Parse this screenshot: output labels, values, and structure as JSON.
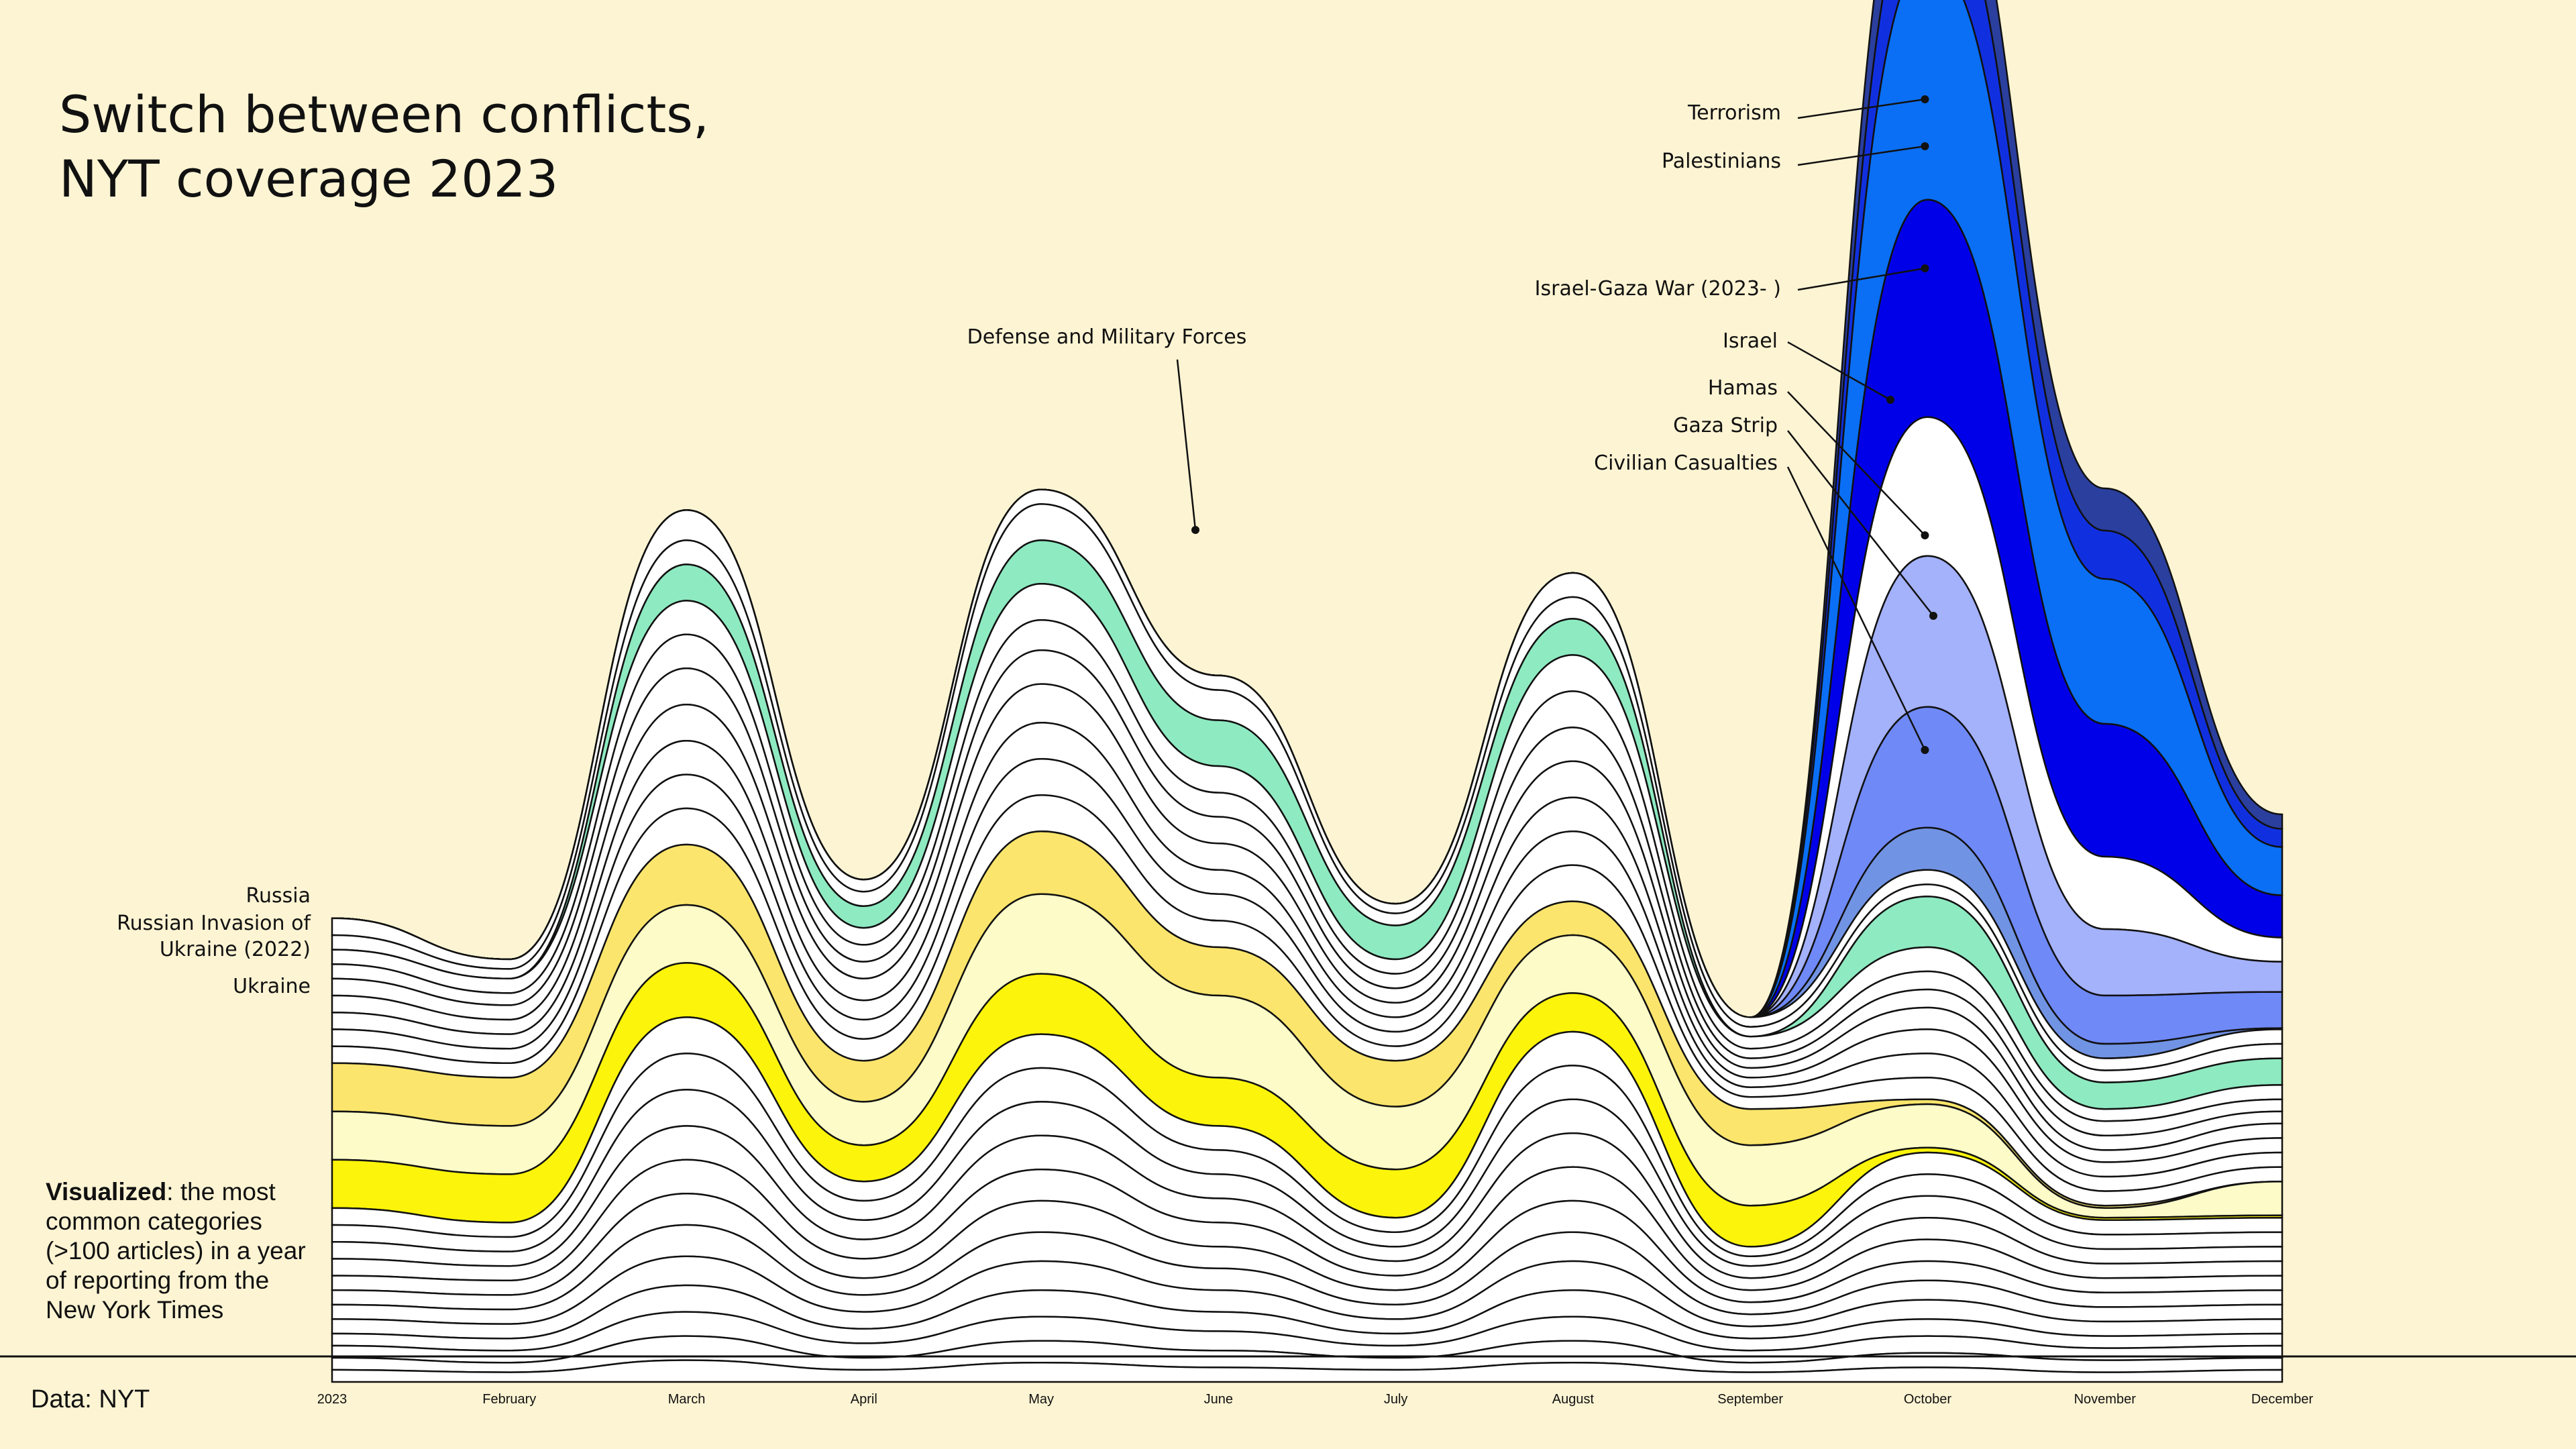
{
  "header": {
    "title_line1": "Switch between conflicts,",
    "title_line2": "NYT coverage 2023"
  },
  "note": {
    "bold": "Visualized",
    "text": ": the most common categories (>100 articles) in a year of reporting from the New York Times"
  },
  "source": "Data: NYT",
  "colors": {
    "background": "#fdf4d3",
    "stream_default": "#ffffff",
    "terrorism": "#2b3f9e",
    "palestinians": "#1030e0",
    "israel_gaza_war": "#0a6ff5",
    "israel": "#0000e8",
    "hamas": "#a4b1fb",
    "gaza_strip": "#6f89f7",
    "civilian_casualties": "#7193e4",
    "defense": "#8eeac1",
    "russia": "#fbe56c",
    "russian_invasion": "#fdfbc8",
    "ukraine": "#fcf40a"
  },
  "chart_data": {
    "type": "area",
    "subtype": "streamgraph",
    "x": [
      "2023",
      "February",
      "March",
      "April",
      "May",
      "June",
      "July",
      "August",
      "September",
      "October",
      "November",
      "December"
    ],
    "x_tick_labels": [
      "2023",
      "February",
      "March",
      "April",
      "May",
      "June",
      "July",
      "August",
      "September",
      "October",
      "November",
      "December"
    ],
    "highlight_labels": {
      "terrorism": "Terrorism",
      "palestinians": "Palestinians",
      "israel_gaza_war": "Israel-Gaza War (2023- )",
      "israel": "Israel",
      "hamas": "Hamas",
      "gaza_strip": "Gaza Strip",
      "civilian_casualties": "Civilian Casualties",
      "defense": "Defense and Military Forces",
      "russia": "Russia",
      "russian_invasion": "Russian Invasion of Ukraine (2022)",
      "ukraine": "Ukraine"
    },
    "series": [
      {
        "key": "terrorism",
        "values": [
          0,
          0,
          0,
          0,
          0,
          0,
          0,
          0,
          0,
          60,
          35,
          12
        ],
        "color_key": "terrorism"
      },
      {
        "key": "palestinians",
        "values": [
          0,
          0,
          0,
          0,
          0,
          0,
          0,
          0,
          0,
          70,
          40,
          15
        ],
        "color_key": "palestinians"
      },
      {
        "key": "israel_gaza_war",
        "values": [
          0,
          0,
          0,
          0,
          0,
          0,
          0,
          0,
          0,
          200,
          120,
          40
        ],
        "color_key": "israel_gaza_war"
      },
      {
        "key": "israel",
        "values": [
          0,
          0,
          0,
          0,
          0,
          0,
          0,
          0,
          0,
          180,
          110,
          35
        ],
        "color_key": "israel"
      },
      {
        "key": "",
        "values": [
          0,
          0,
          0,
          0,
          0,
          0,
          0,
          0,
          0,
          115,
          60,
          20
        ],
        "color_key": "stream_default"
      },
      {
        "key": "hamas",
        "values": [
          0,
          0,
          0,
          0,
          0,
          0,
          0,
          0,
          0,
          125,
          55,
          25
        ],
        "color_key": "hamas"
      },
      {
        "key": "gaza_strip",
        "values": [
          0,
          0,
          0,
          0,
          0,
          0,
          0,
          0,
          0,
          100,
          40,
          30
        ],
        "color_key": "gaza_strip"
      },
      {
        "key": "civilian_casualties",
        "values": [
          0,
          0,
          0,
          0,
          0,
          0,
          0,
          0,
          0,
          35,
          12,
          1
        ],
        "color_key": "civilian_casualties"
      },
      {
        "key": "",
        "values": [
          14,
          8,
          25,
          10,
          12,
          12,
          8,
          20,
          8,
          12,
          10,
          12
        ],
        "color_key": "stream_default"
      },
      {
        "key": "",
        "values": [
          12,
          8,
          20,
          12,
          30,
          25,
          10,
          18,
          8,
          10,
          10,
          12
        ],
        "color_key": "stream_default"
      },
      {
        "key": "defense",
        "values": [
          0,
          0,
          30,
          18,
          36,
          38,
          28,
          30,
          0,
          42,
          22,
          22
        ],
        "color_key": "defense"
      },
      {
        "key": "",
        "values": [
          12,
          12,
          28,
          14,
          30,
          22,
          12,
          30,
          10,
          20,
          10,
          12
        ],
        "color_key": "stream_default"
      },
      {
        "key": "",
        "values": [
          12,
          10,
          28,
          14,
          25,
          20,
          12,
          30,
          8,
          15,
          12,
          10
        ],
        "color_key": "stream_default"
      },
      {
        "key": "",
        "values": [
          14,
          12,
          30,
          14,
          28,
          22,
          12,
          28,
          8,
          15,
          12,
          10
        ],
        "color_key": "stream_default"
      },
      {
        "key": "",
        "values": [
          14,
          12,
          30,
          18,
          32,
          22,
          12,
          30,
          8,
          18,
          10,
          12
        ],
        "color_key": "stream_default"
      },
      {
        "key": "",
        "values": [
          14,
          12,
          28,
          16,
          30,
          20,
          12,
          28,
          8,
          20,
          12,
          12
        ],
        "color_key": "stream_default"
      },
      {
        "key": "",
        "values": [
          14,
          12,
          28,
          16,
          30,
          22,
          12,
          28,
          8,
          20,
          12,
          12
        ],
        "color_key": "stream_default"
      },
      {
        "key": "",
        "values": [
          14,
          12,
          30,
          18,
          30,
          22,
          12,
          30,
          10,
          18,
          12,
          12
        ],
        "color_key": "stream_default"
      },
      {
        "key": "russia",
        "values": [
          40,
          40,
          50,
          34,
          52,
          40,
          38,
          28,
          30,
          4,
          2,
          0
        ],
        "color_key": "russia"
      },
      {
        "key": "russian_invasion",
        "values": [
          40,
          40,
          48,
          36,
          66,
          68,
          52,
          48,
          50,
          36,
          8,
          28
        ],
        "color_key": "russian_invasion"
      },
      {
        "key": "ukraine",
        "values": [
          40,
          40,
          45,
          30,
          50,
          40,
          40,
          32,
          34,
          4,
          2,
          2
        ],
        "color_key": "ukraine"
      },
      {
        "key": "",
        "values": [
          14,
          12,
          30,
          16,
          28,
          20,
          12,
          28,
          8,
          18,
          12,
          12
        ],
        "color_key": "stream_default"
      },
      {
        "key": "",
        "values": [
          14,
          12,
          30,
          16,
          28,
          20,
          12,
          28,
          8,
          18,
          12,
          12
        ],
        "color_key": "stream_default"
      },
      {
        "key": "",
        "values": [
          14,
          12,
          30,
          16,
          28,
          20,
          12,
          28,
          10,
          18,
          12,
          12
        ],
        "color_key": "stream_default"
      },
      {
        "key": "",
        "values": [
          14,
          12,
          28,
          16,
          28,
          20,
          12,
          28,
          10,
          18,
          12,
          12
        ],
        "color_key": "stream_default"
      },
      {
        "key": "",
        "values": [
          12,
          12,
          28,
          16,
          26,
          20,
          12,
          28,
          10,
          18,
          12,
          12
        ],
        "color_key": "stream_default"
      },
      {
        "key": "",
        "values": [
          12,
          12,
          26,
          14,
          26,
          18,
          12,
          26,
          10,
          16,
          12,
          12
        ],
        "color_key": "stream_default"
      },
      {
        "key": "",
        "values": [
          12,
          12,
          26,
          14,
          24,
          18,
          12,
          24,
          10,
          16,
          12,
          12
        ],
        "color_key": "stream_default"
      },
      {
        "key": "",
        "values": [
          12,
          12,
          24,
          14,
          24,
          18,
          12,
          24,
          10,
          16,
          12,
          12
        ],
        "color_key": "stream_default"
      },
      {
        "key": "",
        "values": [
          10,
          10,
          22,
          12,
          22,
          16,
          10,
          22,
          10,
          14,
          10,
          10
        ],
        "color_key": "stream_default"
      },
      {
        "key": "",
        "values": [
          10,
          10,
          20,
          12,
          20,
          16,
          10,
          20,
          10,
          14,
          10,
          10
        ],
        "color_key": "stream_default"
      },
      {
        "key": "",
        "values": [
          10,
          8,
          20,
          10,
          18,
          14,
          10,
          18,
          8,
          12,
          10,
          10
        ],
        "color_key": "stream_default"
      },
      {
        "key": "",
        "values": [
          10,
          8,
          18,
          10,
          16,
          12,
          10,
          16,
          8,
          12,
          8,
          10
        ],
        "color_key": "stream_default"
      }
    ],
    "grid": false,
    "legend": "inline annotations"
  }
}
